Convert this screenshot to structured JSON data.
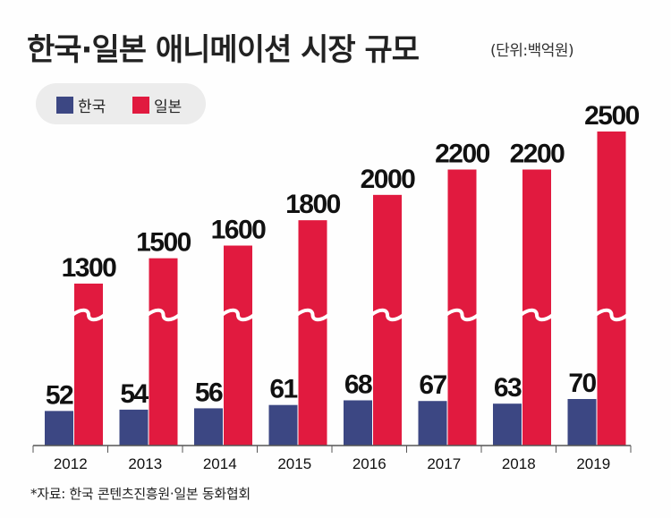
{
  "header": {
    "title": "한국·일본 애니메이션 시장 규모",
    "unit": "(단위:백억원)"
  },
  "footnote": "*자료: 한국 콘텐츠진흥원·일본 동화협회",
  "colors": {
    "korea": "#3c4783",
    "japan": "#e11a3f",
    "axis": "#555555"
  },
  "chart_data": {
    "type": "bar",
    "categories": [
      "2012",
      "2013",
      "2014",
      "2015",
      "2016",
      "2017",
      "2018",
      "2019"
    ],
    "series": [
      {
        "name": "한국",
        "values": [
          52,
          54,
          56,
          61,
          68,
          67,
          63,
          70
        ]
      },
      {
        "name": "일본",
        "values": [
          1300,
          1500,
          1600,
          1800,
          2000,
          2200,
          2200,
          2500
        ]
      }
    ],
    "axis_break": true,
    "grid": false,
    "legend_position": "top-left"
  }
}
